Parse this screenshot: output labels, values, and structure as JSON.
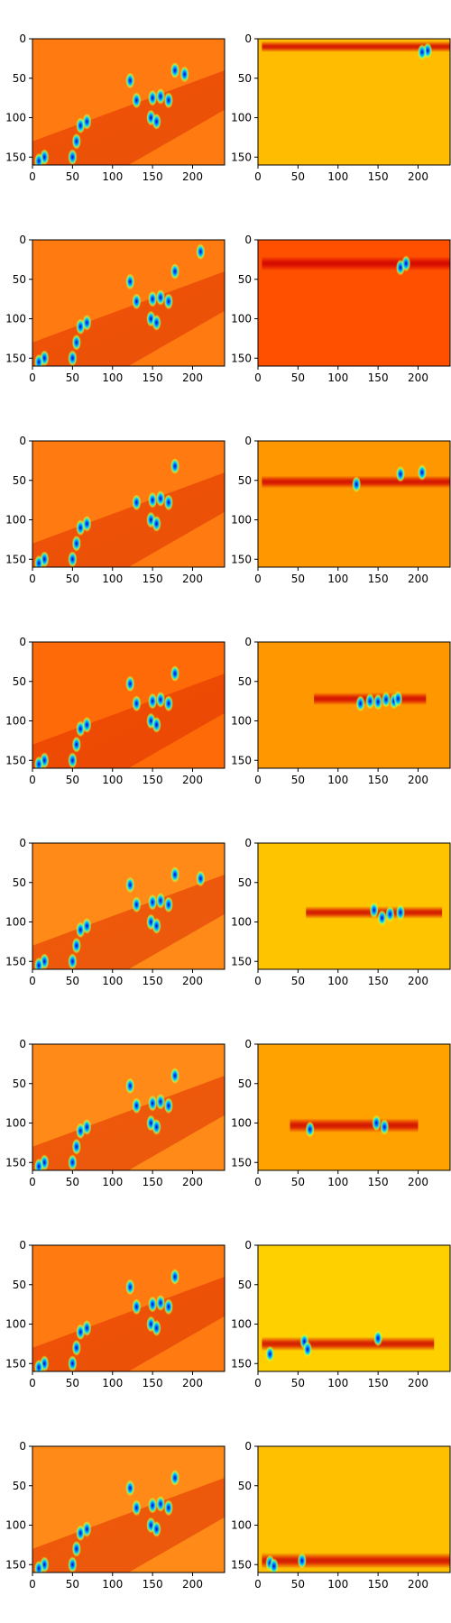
{
  "chart_data": {
    "type": "heatmap",
    "layout": {
      "rows": 8,
      "cols": 2
    },
    "colormap": "jet",
    "x_ticks": [
      0,
      50,
      100,
      150,
      200
    ],
    "x_tick_labels": [
      "0",
      "50",
      "100",
      "150",
      "200"
    ],
    "y_ticks": [
      0,
      50,
      100,
      150
    ],
    "y_tick_labels": [
      "0",
      "50",
      "100",
      "150"
    ],
    "xlim": [
      0,
      240
    ],
    "ylim": [
      160,
      0
    ],
    "grid": false,
    "panels": [
      {
        "row": 0,
        "col": 0,
        "role": "scene",
        "background": "#ff7a10",
        "band": [
          50,
          160
        ],
        "blobs": [
          [
            122,
            53
          ],
          [
            130,
            78
          ],
          [
            150,
            75
          ],
          [
            160,
            73
          ],
          [
            170,
            78
          ],
          [
            178,
            40
          ],
          [
            148,
            100
          ],
          [
            155,
            105
          ],
          [
            60,
            110
          ],
          [
            68,
            105
          ],
          [
            55,
            130
          ],
          [
            50,
            150
          ],
          [
            15,
            150
          ],
          [
            8,
            155
          ],
          [
            190,
            45
          ]
        ]
      },
      {
        "row": 0,
        "col": 1,
        "role": "map",
        "background": "#ffbc00",
        "band_y": 10,
        "band_half_height": 7,
        "band_x": [
          5,
          240
        ],
        "blobs": [
          [
            212,
            15
          ],
          [
            205,
            17
          ]
        ]
      },
      {
        "row": 1,
        "col": 0,
        "role": "scene",
        "background": "#ff7a10",
        "band": [
          50,
          160
        ],
        "blobs": [
          [
            122,
            53
          ],
          [
            130,
            78
          ],
          [
            150,
            75
          ],
          [
            160,
            73
          ],
          [
            170,
            78
          ],
          [
            178,
            40
          ],
          [
            148,
            100
          ],
          [
            155,
            105
          ],
          [
            60,
            110
          ],
          [
            68,
            105
          ],
          [
            55,
            130
          ],
          [
            50,
            150
          ],
          [
            15,
            150
          ],
          [
            8,
            155
          ],
          [
            210,
            15
          ]
        ]
      },
      {
        "row": 1,
        "col": 1,
        "role": "map",
        "background": "#ff5000",
        "band_y": 30,
        "band_half_height": 9,
        "band_x": [
          5,
          240
        ],
        "blobs": [
          [
            178,
            35
          ],
          [
            185,
            30
          ]
        ]
      },
      {
        "row": 2,
        "col": 0,
        "role": "scene",
        "background": "#ff7a10",
        "band": [
          50,
          160
        ],
        "blobs": [
          [
            130,
            78
          ],
          [
            150,
            75
          ],
          [
            160,
            73
          ],
          [
            170,
            78
          ],
          [
            178,
            32
          ],
          [
            148,
            100
          ],
          [
            155,
            105
          ],
          [
            60,
            110
          ],
          [
            68,
            105
          ],
          [
            55,
            130
          ],
          [
            50,
            150
          ],
          [
            15,
            150
          ],
          [
            8,
            155
          ]
        ]
      },
      {
        "row": 2,
        "col": 1,
        "role": "map",
        "background": "#ff9800",
        "band_y": 52,
        "band_half_height": 8,
        "band_x": [
          5,
          240
        ],
        "blobs": [
          [
            123,
            55
          ],
          [
            178,
            42
          ],
          [
            205,
            40
          ]
        ]
      },
      {
        "row": 3,
        "col": 0,
        "role": "scene",
        "background": "#ff6a08",
        "band": [
          50,
          160
        ],
        "blobs": [
          [
            122,
            53
          ],
          [
            130,
            78
          ],
          [
            150,
            75
          ],
          [
            160,
            73
          ],
          [
            170,
            78
          ],
          [
            178,
            40
          ],
          [
            148,
            100
          ],
          [
            155,
            105
          ],
          [
            60,
            110
          ],
          [
            68,
            105
          ],
          [
            55,
            130
          ],
          [
            50,
            150
          ],
          [
            15,
            150
          ],
          [
            8,
            155
          ]
        ]
      },
      {
        "row": 3,
        "col": 1,
        "role": "map",
        "background": "#ff9800",
        "band_y": 72,
        "band_half_height": 8,
        "band_x": [
          70,
          210
        ],
        "blobs": [
          [
            128,
            78
          ],
          [
            140,
            75
          ],
          [
            150,
            76
          ],
          [
            160,
            73
          ],
          [
            170,
            75
          ],
          [
            175,
            72
          ]
        ]
      },
      {
        "row": 4,
        "col": 0,
        "role": "scene",
        "background": "#ff8a18",
        "band": [
          50,
          160
        ],
        "blobs": [
          [
            122,
            53
          ],
          [
            130,
            78
          ],
          [
            150,
            75
          ],
          [
            160,
            73
          ],
          [
            170,
            78
          ],
          [
            178,
            40
          ],
          [
            148,
            100
          ],
          [
            155,
            105
          ],
          [
            60,
            110
          ],
          [
            68,
            105
          ],
          [
            55,
            130
          ],
          [
            50,
            150
          ],
          [
            15,
            150
          ],
          [
            8,
            155
          ],
          [
            210,
            45
          ]
        ]
      },
      {
        "row": 4,
        "col": 1,
        "role": "map",
        "background": "#ffc400",
        "band_y": 88,
        "band_half_height": 8,
        "band_x": [
          60,
          230
        ],
        "blobs": [
          [
            145,
            85
          ],
          [
            155,
            95
          ],
          [
            165,
            90
          ],
          [
            178,
            88
          ]
        ]
      },
      {
        "row": 5,
        "col": 0,
        "role": "scene",
        "background": "#ff8a18",
        "band": [
          50,
          160
        ],
        "blobs": [
          [
            122,
            53
          ],
          [
            130,
            78
          ],
          [
            150,
            75
          ],
          [
            160,
            73
          ],
          [
            170,
            78
          ],
          [
            178,
            40
          ],
          [
            148,
            100
          ],
          [
            155,
            105
          ],
          [
            60,
            110
          ],
          [
            68,
            105
          ],
          [
            55,
            130
          ],
          [
            50,
            150
          ],
          [
            15,
            150
          ],
          [
            8,
            155
          ]
        ]
      },
      {
        "row": 5,
        "col": 1,
        "role": "map",
        "background": "#ffa200",
        "band_y": 103,
        "band_half_height": 9,
        "band_x": [
          40,
          200
        ],
        "blobs": [
          [
            65,
            108
          ],
          [
            148,
            100
          ],
          [
            158,
            105
          ]
        ]
      },
      {
        "row": 6,
        "col": 0,
        "role": "scene",
        "background": "#ff7a10",
        "band": [
          50,
          160
        ],
        "blobs": [
          [
            122,
            53
          ],
          [
            130,
            78
          ],
          [
            150,
            75
          ],
          [
            160,
            73
          ],
          [
            170,
            78
          ],
          [
            178,
            40
          ],
          [
            148,
            100
          ],
          [
            155,
            105
          ],
          [
            60,
            110
          ],
          [
            68,
            105
          ],
          [
            55,
            130
          ],
          [
            50,
            150
          ],
          [
            15,
            150
          ],
          [
            8,
            155
          ]
        ]
      },
      {
        "row": 6,
        "col": 1,
        "role": "map",
        "background": "#ffd000",
        "band_y": 125,
        "band_half_height": 9,
        "band_x": [
          5,
          220
        ],
        "blobs": [
          [
            15,
            138
          ],
          [
            58,
            122
          ],
          [
            62,
            132
          ],
          [
            150,
            118
          ]
        ]
      },
      {
        "row": 7,
        "col": 0,
        "role": "scene",
        "background": "#ff8a18",
        "band": [
          50,
          160
        ],
        "blobs": [
          [
            122,
            53
          ],
          [
            130,
            78
          ],
          [
            150,
            75
          ],
          [
            160,
            73
          ],
          [
            170,
            78
          ],
          [
            178,
            40
          ],
          [
            148,
            100
          ],
          [
            155,
            105
          ],
          [
            60,
            110
          ],
          [
            68,
            105
          ],
          [
            55,
            130
          ],
          [
            50,
            150
          ],
          [
            15,
            150
          ],
          [
            8,
            155
          ]
        ]
      },
      {
        "row": 7,
        "col": 1,
        "role": "map",
        "background": "#ffc000",
        "band_y": 145,
        "band_half_height": 10,
        "band_x": [
          5,
          240
        ],
        "blobs": [
          [
            15,
            148
          ],
          [
            55,
            145
          ],
          [
            20,
            152
          ]
        ]
      }
    ]
  }
}
